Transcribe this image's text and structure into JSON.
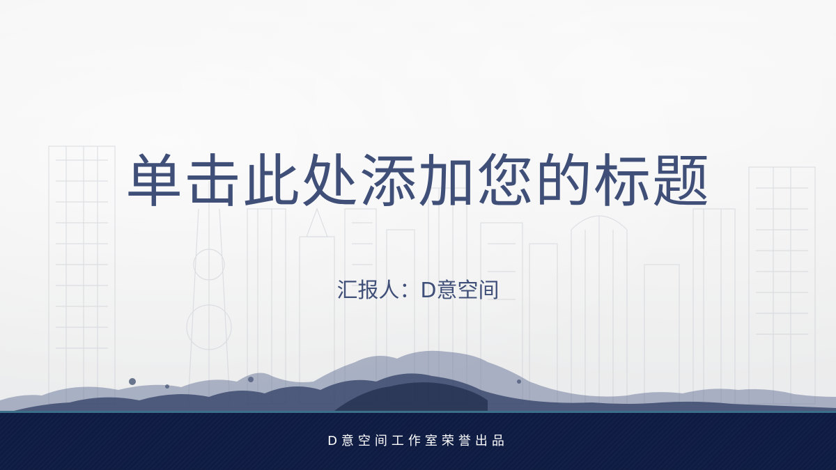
{
  "slide": {
    "title": "单击此处添加您的标题",
    "reporter": "汇报人：D意空间",
    "footer": "D意空间工作室荣誉出品"
  },
  "colors": {
    "title": "#3f4f78",
    "footer_bg": "#0e1b42",
    "ink": "#3a4a6e"
  },
  "graphics": {
    "background": "city-skyline-sketch",
    "ink_band": "ink-wash-mountains"
  }
}
